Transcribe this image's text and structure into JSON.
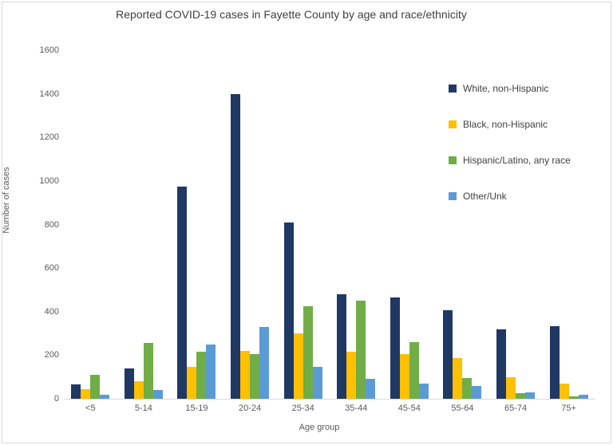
{
  "window": {
    "background": "#FFFFFF",
    "border_color": "#D9D9D9"
  },
  "chart_data": {
    "type": "bar",
    "title": "Reported COVID-19 cases in Fayette County by age and race/ethnicity",
    "xlabel": "Age group",
    "ylabel": "Number of cases",
    "ylim": [
      0,
      1600
    ],
    "yticks": [
      0,
      200,
      400,
      600,
      800,
      1000,
      1200,
      1400,
      1600
    ],
    "grid": false,
    "legend_position": "right-inside",
    "axis_text_color": "#595959",
    "title_text_color": "#404040",
    "categories": [
      "<5",
      "5-14",
      "15-19",
      "20-24",
      "25-34",
      "35-44",
      "45-54",
      "55-64",
      "65-74",
      "75+"
    ],
    "series": [
      {
        "name": "White, non-Hispanic",
        "color": "#1F3864",
        "values": [
          65,
          140,
          975,
          1400,
          810,
          480,
          465,
          405,
          320,
          335
        ]
      },
      {
        "name": "Black, non-Hispanic",
        "color": "#FFC000",
        "values": [
          45,
          80,
          145,
          220,
          300,
          215,
          205,
          185,
          100,
          70
        ]
      },
      {
        "name": "Hispanic/Latino, any race",
        "color": "#70AD47",
        "values": [
          110,
          255,
          215,
          205,
          425,
          450,
          260,
          95,
          25,
          10
        ]
      },
      {
        "name": "Other/Unk",
        "color": "#5B9BD5",
        "values": [
          20,
          40,
          250,
          330,
          145,
          90,
          70,
          60,
          30,
          20
        ]
      }
    ]
  }
}
